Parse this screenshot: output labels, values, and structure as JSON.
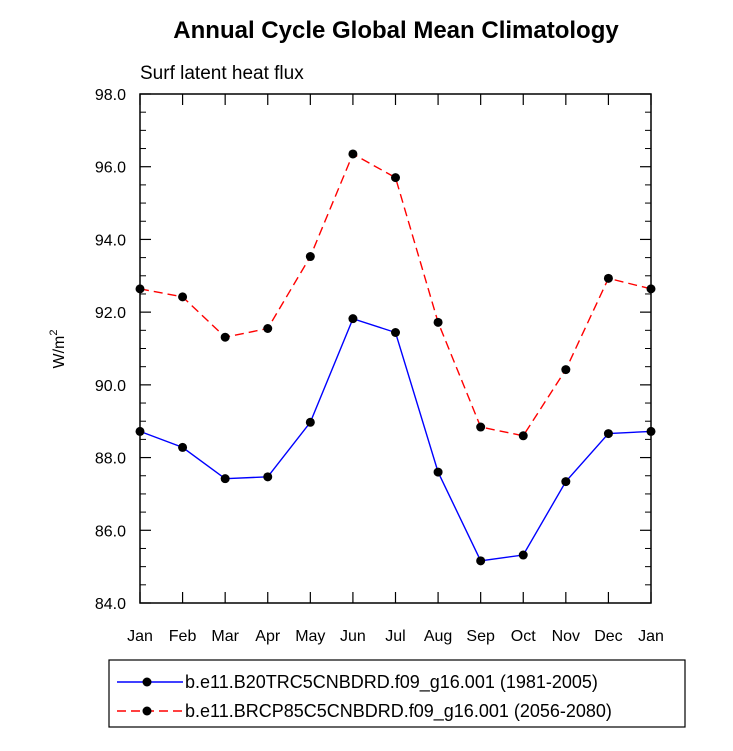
{
  "chart_data": {
    "type": "line",
    "title": "Annual Cycle Global Mean Climatology",
    "subtitle": "Surf latent heat flux",
    "xlabel": "",
    "ylabel": "W/m",
    "ylabel_superscript": "2",
    "categories": [
      "Jan",
      "Feb",
      "Mar",
      "Apr",
      "May",
      "Jun",
      "Jul",
      "Aug",
      "Sep",
      "Oct",
      "Nov",
      "Dec",
      "Jan"
    ],
    "yticks": [
      "84.0",
      "86.0",
      "88.0",
      "90.0",
      "92.0",
      "94.0",
      "96.0",
      "98.0"
    ],
    "ylim": [
      84.0,
      98.0
    ],
    "grid": false,
    "legend_position": "bottom",
    "series": [
      {
        "name": "b.e11.B20TRC5CNBDRD.f09_g16.001 (1981-2005)",
        "color": "#0000ff",
        "line_style": "solid",
        "marker": "filled-circle",
        "values": [
          88.72,
          88.28,
          87.42,
          87.47,
          88.97,
          91.82,
          91.44,
          87.6,
          85.16,
          85.32,
          87.34,
          88.66,
          88.72
        ]
      },
      {
        "name": "b.e11.BRCP85C5CNBDRD.f09_g16.001 (2056-2080)",
        "color": "#ff0000",
        "line_style": "dashed",
        "marker": "filled-circle",
        "values": [
          92.64,
          92.42,
          91.31,
          91.55,
          93.53,
          96.35,
          95.7,
          91.72,
          88.84,
          88.6,
          90.42,
          92.93,
          92.64
        ]
      }
    ]
  }
}
